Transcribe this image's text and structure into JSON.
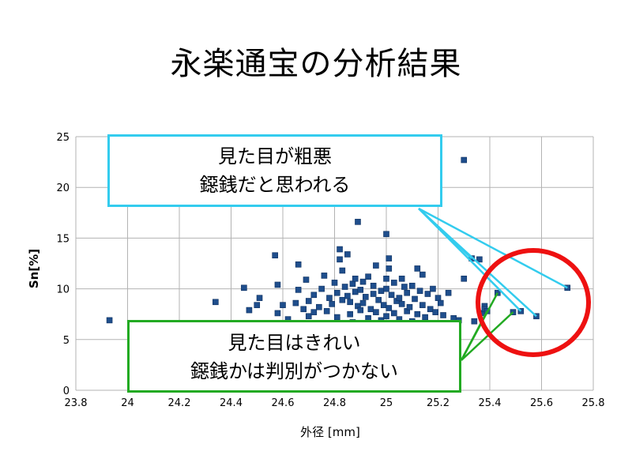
{
  "title": "永楽通宝の分析結果",
  "chart_data": {
    "type": "scatter",
    "xlabel": "外径 [mm]",
    "ylabel": "Sn[%]",
    "xlim": [
      23.8,
      25.8
    ],
    "ylim": [
      0,
      25
    ],
    "xticks": [
      "23.8",
      "24",
      "24.2",
      "24.4",
      "24.6",
      "24.8",
      "25",
      "25.2",
      "25.4",
      "25.6",
      "25.8"
    ],
    "yticks": [
      "0",
      "5",
      "10",
      "15",
      "20",
      "25"
    ],
    "grid": true,
    "marker_color": "#1f4e8c",
    "series": [
      {
        "points": [
          [
            23.93,
            6.9
          ],
          [
            24.34,
            8.7
          ],
          [
            24.45,
            10.1
          ],
          [
            24.47,
            7.9
          ],
          [
            24.5,
            8.4
          ],
          [
            24.51,
            9.1
          ],
          [
            24.53,
            6.6
          ],
          [
            24.57,
            13.3
          ],
          [
            24.58,
            10.4
          ],
          [
            24.58,
            7.6
          ],
          [
            24.6,
            8.4
          ],
          [
            24.62,
            7.0
          ],
          [
            24.65,
            8.6
          ],
          [
            24.66,
            9.9
          ],
          [
            24.66,
            12.4
          ],
          [
            24.67,
            6.1
          ],
          [
            24.68,
            8.0
          ],
          [
            24.69,
            10.9
          ],
          [
            24.7,
            8.8
          ],
          [
            24.7,
            7.3
          ],
          [
            24.72,
            7.7
          ],
          [
            24.72,
            9.4
          ],
          [
            24.74,
            8.2
          ],
          [
            24.75,
            10.0
          ],
          [
            24.76,
            11.3
          ],
          [
            24.77,
            7.8
          ],
          [
            24.78,
            9.1
          ],
          [
            24.79,
            8.5
          ],
          [
            24.8,
            10.6
          ],
          [
            24.81,
            9.6
          ],
          [
            24.81,
            7.2
          ],
          [
            24.82,
            13.9
          ],
          [
            24.82,
            12.9
          ],
          [
            24.83,
            11.8
          ],
          [
            24.83,
            8.9
          ],
          [
            24.84,
            10.2
          ],
          [
            24.85,
            9.3
          ],
          [
            24.85,
            13.4
          ],
          [
            24.86,
            7.5
          ],
          [
            24.86,
            8.7
          ],
          [
            24.87,
            10.5
          ],
          [
            24.87,
            6.7
          ],
          [
            24.88,
            9.7
          ],
          [
            24.88,
            11.0
          ],
          [
            24.89,
            8.3
          ],
          [
            24.89,
            16.6
          ],
          [
            24.9,
            9.9
          ],
          [
            24.9,
            7.9
          ],
          [
            24.91,
            10.7
          ],
          [
            24.91,
            8.6
          ],
          [
            24.92,
            9.2
          ],
          [
            24.93,
            7.1
          ],
          [
            24.93,
            11.2
          ],
          [
            24.94,
            8.0
          ],
          [
            24.95,
            9.5
          ],
          [
            24.95,
            10.3
          ],
          [
            24.96,
            12.3
          ],
          [
            24.96,
            7.7
          ],
          [
            24.97,
            8.9
          ],
          [
            24.98,
            6.9
          ],
          [
            24.98,
            9.8
          ],
          [
            24.99,
            8.4
          ],
          [
            25.0,
            11.0
          ],
          [
            25.0,
            7.3
          ],
          [
            25.0,
            15.4
          ],
          [
            25.0,
            10.0
          ],
          [
            25.01,
            13.0
          ],
          [
            25.01,
            12.0
          ],
          [
            25.01,
            8.1
          ],
          [
            25.02,
            9.4
          ],
          [
            25.03,
            7.6
          ],
          [
            25.03,
            10.6
          ],
          [
            25.04,
            8.8
          ],
          [
            25.05,
            9.1
          ],
          [
            25.05,
            7.0
          ],
          [
            25.06,
            11.0
          ],
          [
            25.06,
            8.5
          ],
          [
            25.07,
            10.2
          ],
          [
            25.08,
            7.8
          ],
          [
            25.08,
            9.6
          ],
          [
            25.09,
            8.2
          ],
          [
            25.1,
            10.3
          ],
          [
            25.1,
            6.8
          ],
          [
            25.11,
            9.0
          ],
          [
            25.12,
            12.0
          ],
          [
            25.12,
            7.5
          ],
          [
            25.13,
            9.8
          ],
          [
            25.14,
            8.4
          ],
          [
            25.14,
            11.4
          ],
          [
            25.15,
            7.2
          ],
          [
            25.16,
            9.5
          ],
          [
            25.17,
            8.0
          ],
          [
            25.18,
            10.0
          ],
          [
            25.19,
            7.7
          ],
          [
            25.2,
            9.1
          ],
          [
            25.21,
            8.6
          ],
          [
            25.22,
            7.4
          ],
          [
            25.24,
            9.6
          ],
          [
            25.26,
            7.1
          ],
          [
            25.28,
            6.9
          ],
          [
            25.3,
            22.7
          ],
          [
            25.3,
            11.0
          ],
          [
            25.33,
            13.0
          ],
          [
            25.34,
            6.8
          ],
          [
            25.36,
            12.9
          ],
          [
            25.37,
            7.6
          ],
          [
            25.38,
            8.3
          ],
          [
            25.38,
            8.0
          ],
          [
            25.39,
            7.8
          ],
          [
            25.43,
            9.6
          ],
          [
            25.49,
            7.7
          ],
          [
            25.52,
            7.8
          ],
          [
            25.58,
            7.3
          ],
          [
            25.7,
            10.1
          ]
        ]
      }
    ]
  },
  "callouts": {
    "top": {
      "line1": "見た目が粗悪",
      "line2": "鐚銭だと思われる"
    },
    "bottom": {
      "line1": "見た目はきれい",
      "line2": "鐚銭かは判別がつかない"
    }
  },
  "colors": {
    "top_callout": "#33ccee",
    "bottom_callout": "#22aa22",
    "highlight_ring": "#ee1111"
  }
}
